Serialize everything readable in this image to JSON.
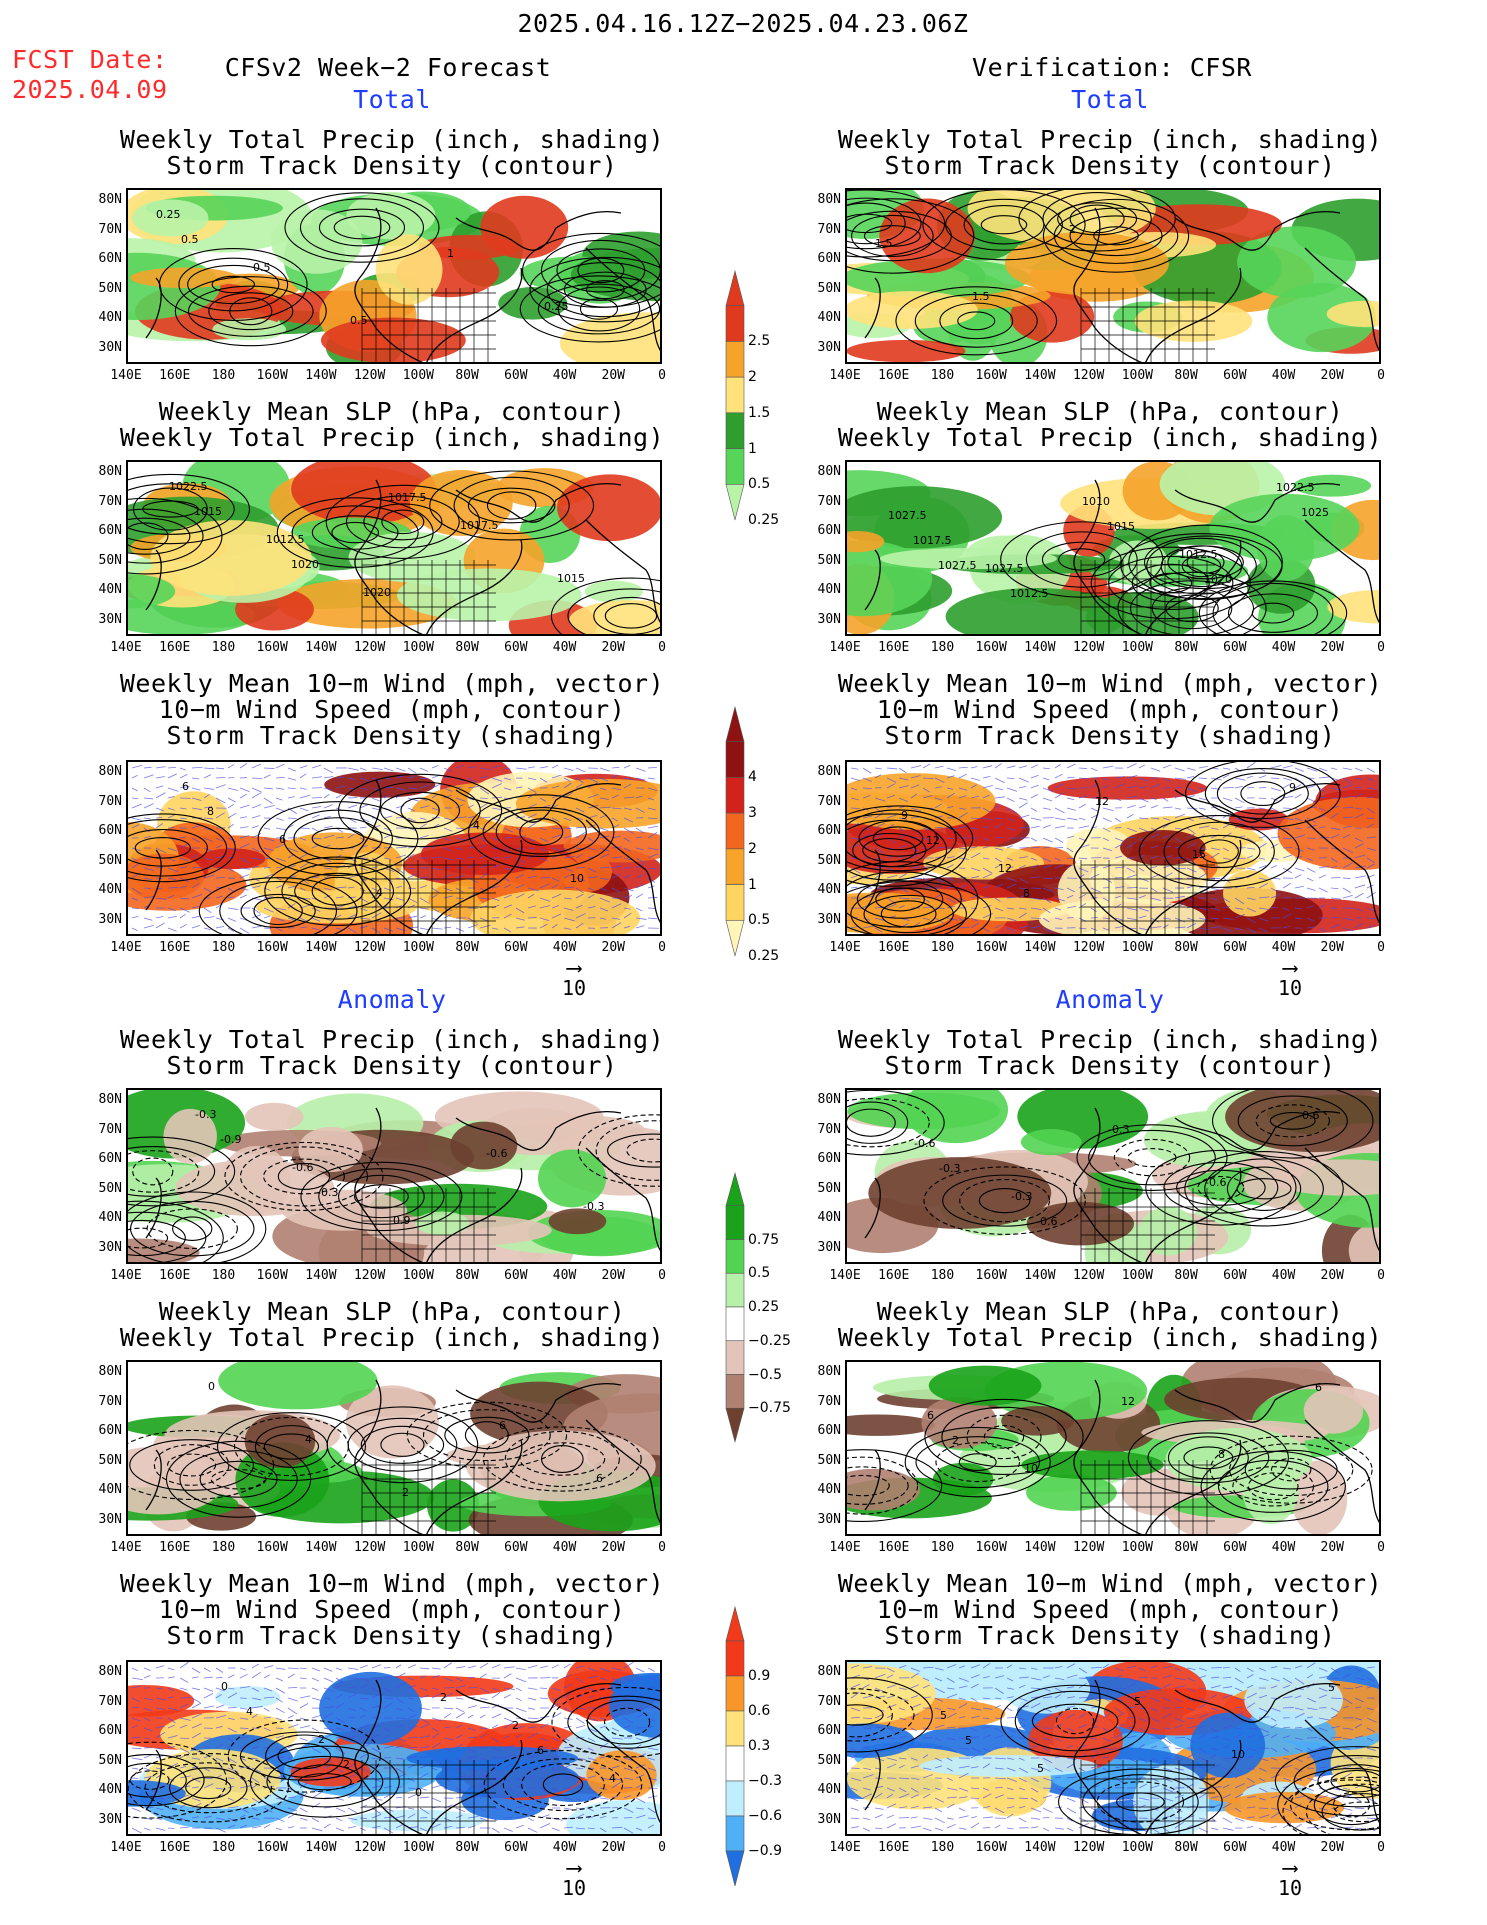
{
  "header": {
    "period": "2025.04.16.12Z−2025.04.23.06Z",
    "fcst_label": "FCST Date:",
    "fcst_date": "2025.04.09",
    "left_title": "CFSv2 Week−2 Forecast",
    "right_title": "Verification: CFSR"
  },
  "sections": {
    "total": "Total",
    "anomaly": "Anomaly"
  },
  "panel_titles": {
    "p1": [
      "Weekly Total Precip (inch, shading)",
      "Storm Track Density (contour)"
    ],
    "p2": [
      "Weekly Mean SLP (hPa, contour)",
      "Weekly Total Precip (inch, shading)"
    ],
    "p3": [
      "Weekly Mean 10−m Wind (mph, vector)",
      "10−m Wind Speed (mph, contour)",
      "Storm Track Density (shading)"
    ]
  },
  "axes": {
    "lat": [
      "80N",
      "70N",
      "60N",
      "50N",
      "40N",
      "30N"
    ],
    "lon": [
      "140E",
      "160E",
      "180",
      "160W",
      "140W",
      "120W",
      "100W",
      "80W",
      "60W",
      "40W",
      "20W",
      "0"
    ]
  },
  "vector_ref": "10",
  "colorbars": {
    "precip_total": {
      "labels": [
        "2.5",
        "2",
        "1.5",
        "1",
        "0.5",
        "0.25"
      ],
      "colors": [
        "#e03a1e",
        "#f5a32a",
        "#ffe27a",
        "#2e9e2e",
        "#57d45a",
        "#b9f3a8"
      ]
    },
    "storm_total": {
      "labels": [
        "4",
        "3",
        "2",
        "1",
        "0.5",
        "0.25"
      ],
      "colors": [
        "#8e1212",
        "#d1231b",
        "#f3661e",
        "#f8a42a",
        "#ffd460",
        "#fff5b8"
      ]
    },
    "precip_anom": {
      "labels": [
        "0.75",
        "0.5",
        "0.25",
        "−0.25",
        "−0.5",
        "−0.75"
      ],
      "colors": [
        "#1aa31a",
        "#52d452",
        "#b7f0a8",
        "#ffffff",
        "#e3c4b8",
        "#b08070",
        "#6e4030"
      ]
    },
    "storm_anom": {
      "labels": [
        "0.9",
        "0.6",
        "0.3",
        "−0.3",
        "−0.6",
        "−0.9"
      ],
      "colors": [
        "#f23a1a",
        "#f8962a",
        "#ffe27a",
        "#ffffff",
        "#bfeeff",
        "#4fb0f5",
        "#1f6fe0"
      ]
    }
  },
  "contour_labels": {
    "fc_total_1": [
      "0.25",
      "0.5",
      "0.5",
      "1",
      "0.25",
      "0.5"
    ],
    "fc_total_2": [
      "1022.5",
      "1012.5",
      "1020",
      "1017.5",
      "1015",
      "1015",
      "1020",
      "1017.5"
    ],
    "fc_total_3": [
      "6",
      "6",
      "4",
      "4",
      "10",
      "8"
    ],
    "vf_total_1": [
      "1.5",
      "1.5",
      "2"
    ],
    "vf_total_2": [
      "1027.5",
      "1027.5",
      "1010",
      "1012.5",
      "1022.5",
      "1017.5",
      "1012.5",
      "1015",
      "1020",
      "1025",
      "1027.5"
    ],
    "vf_total_3": [
      "9",
      "12",
      "12",
      "15",
      "9",
      "12",
      "8"
    ],
    "fc_anom_1": [
      "-0.3",
      "-0.6",
      "-0.9",
      "-0.6",
      "-0.3",
      "-0.9",
      "-0.3"
    ],
    "fc_anom_2": [
      "0",
      "4",
      "2",
      "6",
      "6"
    ],
    "fc_anom_3": [
      "0",
      "2",
      "0",
      "2",
      "4",
      "4",
      "2",
      "2",
      "6"
    ],
    "vf_anom_1": [
      "-0.6",
      "-0.3",
      "-0.3",
      "-0.6",
      "0.6",
      "-0.3",
      "-0.6"
    ],
    "vf_anom_2": [
      "6",
      "10",
      "12",
      "8",
      "6",
      "2"
    ],
    "vf_anom_3": [
      "5",
      "5",
      "5",
      "10",
      "5",
      "5"
    ]
  }
}
